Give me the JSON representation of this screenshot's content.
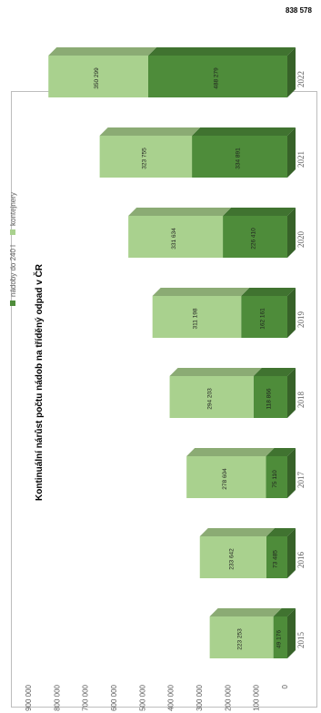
{
  "chart_data": {
    "type": "bar",
    "orientation": "stacked-3d",
    "title": "Kontinuální nárůst počtu nádob na tříděný odpad v ČR",
    "categories": [
      "2015",
      "2016",
      "2017",
      "2018",
      "2019",
      "2020",
      "2021",
      "2022"
    ],
    "series": [
      {
        "name": "nádoby do 240 l",
        "color": "#4e8c3a",
        "values": [
          49176,
          73485,
          75110,
          118866,
          162161,
          226410,
          334891,
          488279
        ],
        "labels": [
          "49 176",
          "73 485",
          "75 110",
          "118 866",
          "162 161",
          "226 410",
          "334 891",
          "488 279"
        ]
      },
      {
        "name": "kontejnery",
        "color": "#a9d18e",
        "values": [
          223253,
          233642,
          278604,
          294203,
          311198,
          331634,
          323755,
          350299
        ],
        "labels": [
          "223 253",
          "233 642",
          "278 604",
          "294 203",
          "311 198",
          "331 634",
          "323 755",
          "350 299"
        ]
      }
    ],
    "total_label": "838 578",
    "ylim": [
      0,
      900000
    ],
    "yticks": [
      0,
      100000,
      200000,
      300000,
      400000,
      500000,
      600000,
      700000,
      800000,
      900000
    ],
    "ytick_labels": [
      "0",
      "100 000",
      "200 000",
      "300 000",
      "400 000",
      "500 000",
      "600 000",
      "700 000",
      "800 000",
      "900 000"
    ],
    "legend_position": "bottom",
    "grid": false
  }
}
